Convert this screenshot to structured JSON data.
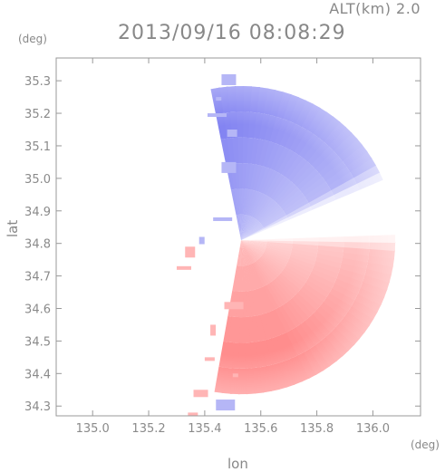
{
  "header": {
    "altitude_label": "ALT(km) 2.0",
    "timestamp": "2013/09/16 08:08:29",
    "y_unit": "(deg)",
    "x_unit": "(deg)"
  },
  "chart_data": {
    "type": "heatmap",
    "title": "2013/09/16 08:08:29",
    "xlabel": "lon",
    "ylabel": "lat",
    "x_unit": "(deg)",
    "y_unit": "(deg)",
    "annotation": "ALT(km) 2.0",
    "xlim": [
      134.87,
      136.17
    ],
    "ylim": [
      34.27,
      35.37
    ],
    "xticks": [
      135.0,
      135.2,
      135.4,
      135.6,
      135.8,
      136.0
    ],
    "xtick_labels": [
      "135.0",
      "135.2",
      "135.4",
      "135.6",
      "135.8",
      "136.0"
    ],
    "yticks": [
      34.3,
      34.4,
      34.5,
      34.6,
      34.7,
      34.8,
      34.9,
      35.0,
      35.1,
      35.2,
      35.3
    ],
    "ytick_labels": [
      "34.3",
      "34.4",
      "34.5",
      "34.6",
      "34.7",
      "34.8",
      "34.9",
      "35.0",
      "35.1",
      "35.2",
      "35.3"
    ],
    "radar_center": [
      135.53,
      34.81
    ],
    "scan_range_deg": 0.55,
    "grid": false,
    "legend": "none",
    "colors": {
      "approaching": "#6b6cef",
      "receding": "#ff7f7f",
      "neutral": "#ffffff",
      "frame": "#999999"
    }
  }
}
